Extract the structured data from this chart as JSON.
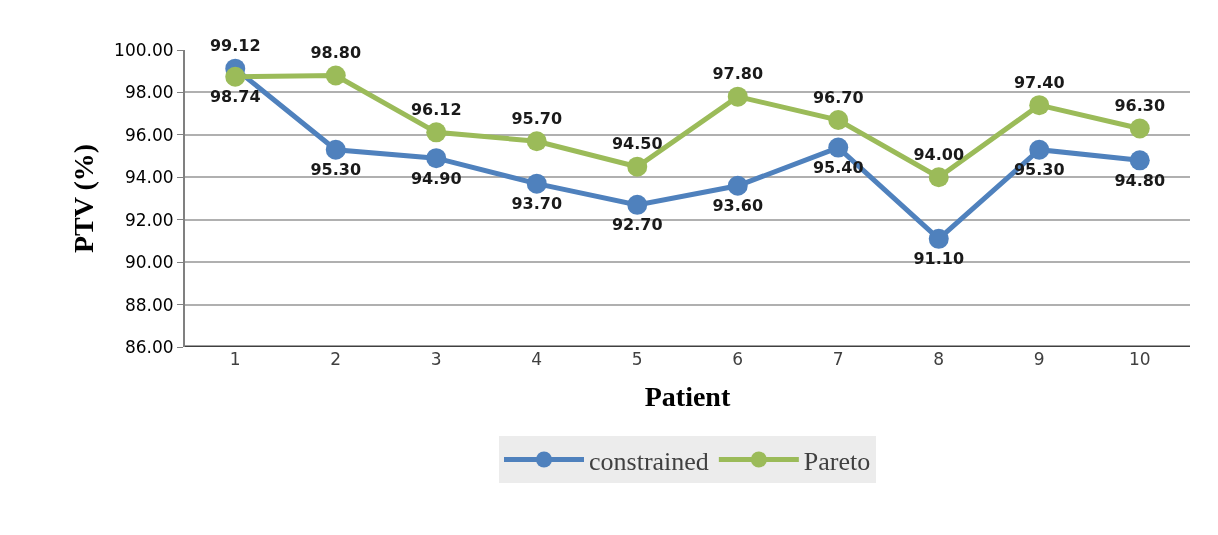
{
  "chart_data": {
    "type": "line",
    "xlabel": "Patient",
    "ylabel": "PTV (%)",
    "categories": [
      "1",
      "2",
      "3",
      "4",
      "5",
      "6",
      "7",
      "8",
      "9",
      "10"
    ],
    "series": [
      {
        "name": "constrained",
        "color": "#4f81bd",
        "values": [
          99.12,
          95.3,
          94.9,
          93.7,
          92.7,
          93.6,
          95.4,
          91.1,
          95.3,
          94.8
        ],
        "value_labels": [
          "99.12",
          "95.30",
          "94.90",
          "93.70",
          "92.70",
          "93.60",
          "95.40",
          "91.10",
          "95.30",
          "94.80"
        ]
      },
      {
        "name": "Pareto",
        "color": "#9bbb59",
        "values": [
          98.74,
          98.8,
          96.12,
          95.7,
          94.5,
          97.8,
          96.7,
          94.0,
          97.4,
          96.3
        ],
        "value_labels": [
          "98.74",
          "98.80",
          "96.12",
          "95.70",
          "94.50",
          "97.80",
          "96.70",
          "94.00",
          "97.40",
          "96.30"
        ]
      }
    ],
    "ylim": [
      86,
      100
    ],
    "yticks": [
      {
        "value": 86,
        "label": "86.00"
      },
      {
        "value": 88,
        "label": "88.00"
      },
      {
        "value": 90,
        "label": "90.00"
      },
      {
        "value": 92,
        "label": "92.00"
      },
      {
        "value": 94,
        "label": "94.00"
      },
      {
        "value": 96,
        "label": "96.00"
      },
      {
        "value": 98,
        "label": "98.00"
      },
      {
        "value": 100,
        "label": "100.00"
      }
    ],
    "grid": "y",
    "legend": "bottom",
    "marker": "circle",
    "line_style": "solid"
  }
}
